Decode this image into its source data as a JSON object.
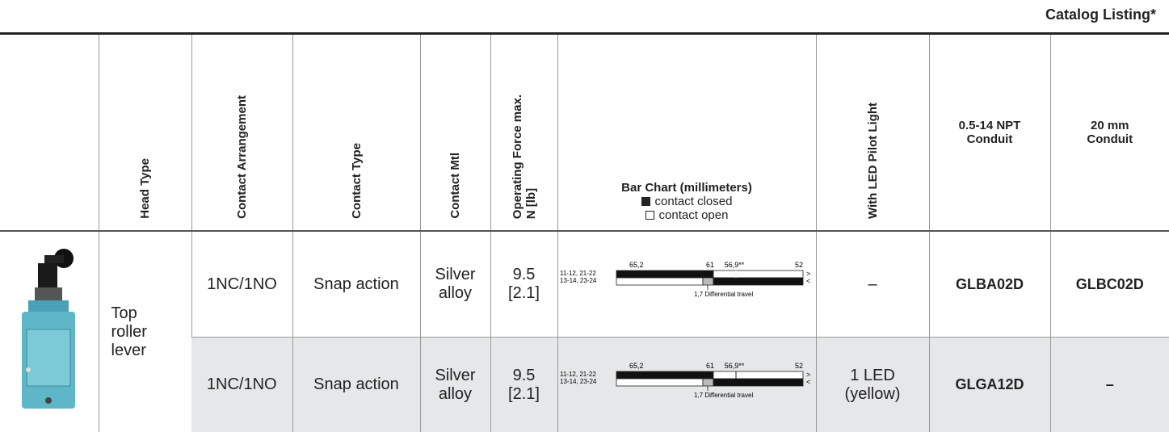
{
  "header": {
    "catalog_listing": "Catalog Listing*"
  },
  "table": {
    "columns": {
      "head_type": "Head Type",
      "contact_arrangement": "Contact Arrangement",
      "contact_type": "Contact Type",
      "contact_mtl": "Contact Mtl",
      "operating_force": [
        "Operating Force  max.",
        "N [lb]"
      ],
      "bar_chart": [
        "Bar Chart (millimeters)",
        "contact closed",
        "contact open"
      ],
      "led": "With LED Pilot Light",
      "npt": "0.5-14 NPT Conduit",
      "mm20": "20 mm Conduit"
    },
    "head_type": "Top roller lever",
    "rows": [
      {
        "contact_arrangement": "1NC/1NO",
        "contact_type": "Snap action",
        "contact_mtl": "Silver alloy",
        "operating_force": "9.5 [2.1]",
        "bar_chart": {
          "positions": [
            "65,2",
            "61",
            "56,9**",
            "52"
          ],
          "circuits": [
            "11-12, 21-22",
            "13-14, 23-24"
          ],
          "arrows": [
            ">",
            "<"
          ],
          "note": "1,7 Differential travel"
        },
        "led": "–",
        "npt": "GLBA02D",
        "mm20": "GLBC02D"
      },
      {
        "contact_arrangement": "1NC/1NO",
        "contact_type": "Snap action",
        "contact_mtl": "Silver alloy",
        "operating_force": "9.5 [2.1]",
        "bar_chart": {
          "positions": [
            "65,2",
            "61",
            "56,9**",
            "52"
          ],
          "circuits": [
            "11-12, 21-22",
            "13-14, 23-24"
          ],
          "arrows": [
            ">",
            "<"
          ],
          "note": "1,7 Differential travel"
        },
        "led": "1 LED (yellow)",
        "npt": "GLGA12D",
        "mm20": "–"
      }
    ]
  }
}
